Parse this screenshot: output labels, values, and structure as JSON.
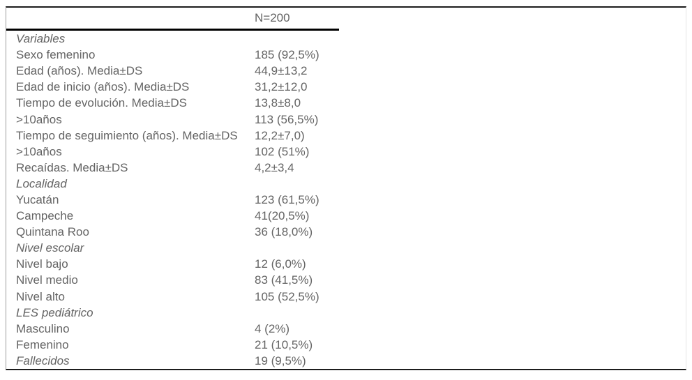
{
  "table": {
    "header": {
      "n_label": "N=200"
    },
    "rows": [
      {
        "label": "Variables",
        "value": "",
        "italic": true
      },
      {
        "label": "Sexo femenino",
        "value": "185 (92,5%)",
        "italic": false
      },
      {
        "label": "Edad (años). Media±DS",
        "value": "44,9±13,2",
        "italic": false
      },
      {
        "label": "Edad de inicio (años). Media±DS",
        "value": "31,2±12,0",
        "italic": false
      },
      {
        "label": "Tiempo de evolución. Media±DS",
        "value": "13,8±8,0",
        "italic": false
      },
      {
        "label": ">10años",
        "value": "113 (56,5%)",
        "italic": false
      },
      {
        "label": "Tiempo de seguimiento (años). Media±DS",
        "value": "12,2±7,0)",
        "italic": false
      },
      {
        "label": ">10años",
        "value": "102 (51%)",
        "italic": false
      },
      {
        "label": "Recaídas. Media±DS",
        "value": "4,2±3,4",
        "italic": false
      },
      {
        "label": "Localidad",
        "value": "",
        "italic": true
      },
      {
        "label": "Yucatán",
        "value": "123 (61,5%)",
        "italic": false
      },
      {
        "label": "Campeche",
        "value": "41(20,5%)",
        "italic": false
      },
      {
        "label": "Quintana Roo",
        "value": "36 (18,0%)",
        "italic": false
      },
      {
        "label": "Nivel escolar",
        "value": "",
        "italic": true
      },
      {
        "label": "Nivel bajo",
        "value": "12 (6,0%)",
        "italic": false
      },
      {
        "label": "Nivel medio",
        "value": "83 (41,5%)",
        "italic": false
      },
      {
        "label": "Nivel alto",
        "value": "105 (52,5%)",
        "italic": false
      },
      {
        "label": "LES pediátrico",
        "value": "",
        "italic": true
      },
      {
        "label": "Masculino",
        "value": "4 (2%)",
        "italic": false
      },
      {
        "label": "Femenino",
        "value": "21 (10,5%)",
        "italic": false
      },
      {
        "label": "Fallecidos",
        "value": "19 (9,5%)",
        "italic": true
      }
    ],
    "colors": {
      "text": "#646464",
      "top_bottom_rule": "#1c1c1c",
      "header_rule": "#000000",
      "left_frame_line": "#9c9c9c",
      "right_frame_line": "#e4e4e4"
    }
  }
}
